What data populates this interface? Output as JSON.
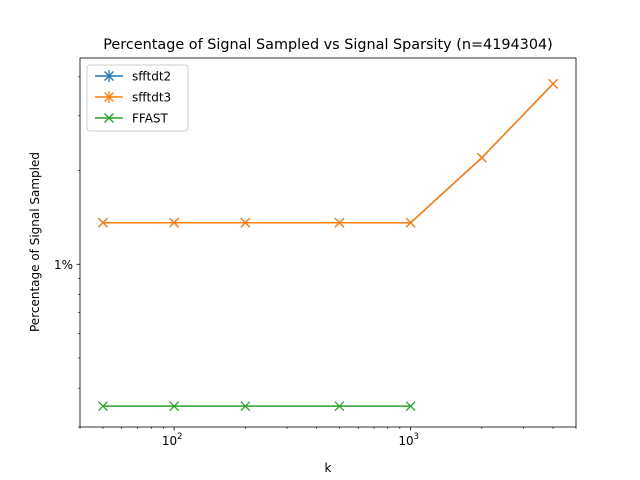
{
  "chart_data": {
    "type": "line",
    "title": "Percentage of Signal Sampled vs Signal Sparsity (n=4194304)",
    "xlabel": "k",
    "ylabel": "Percentage of Signal Sampled",
    "xscale": "log",
    "yscale": "log",
    "xlim": [
      40,
      5000
    ],
    "ylim": [
      0.3,
      4.6
    ],
    "x_major_ticks": [
      {
        "value": 100,
        "base": "10",
        "exp": "2"
      },
      {
        "value": 1000,
        "base": "10",
        "exp": "3"
      }
    ],
    "x_minor_ticks": [
      40,
      50,
      60,
      70,
      80,
      90,
      200,
      300,
      400,
      500,
      600,
      700,
      800,
      900,
      2000,
      3000,
      4000,
      5000
    ],
    "y_major_ticks": [
      {
        "value": 1,
        "label": "1%"
      }
    ],
    "y_minor_ticks": [
      0.3,
      0.4,
      0.5,
      0.6,
      0.7,
      0.8,
      0.9,
      2,
      3,
      4
    ],
    "grid": false,
    "legend_position": "top-left",
    "series": [
      {
        "name": "sfftdt2",
        "color": "#1f77b4",
        "marker": "star",
        "x": [
          50,
          100,
          200,
          500,
          1000,
          2000,
          4000
        ],
        "y": [
          1.36,
          1.36,
          1.36,
          1.36,
          1.36,
          2.2,
          3.8
        ]
      },
      {
        "name": "sfftdt3",
        "color": "#ff7f0e",
        "marker": "star",
        "x": [
          50,
          100,
          200,
          500,
          1000,
          2000,
          4000
        ],
        "y": [
          1.36,
          1.36,
          1.36,
          1.36,
          1.36,
          2.2,
          3.8
        ]
      },
      {
        "name": "FFAST",
        "color": "#2ca02c",
        "marker": "x",
        "x": [
          50,
          100,
          200,
          500,
          1000
        ],
        "y": [
          0.35,
          0.35,
          0.35,
          0.35,
          0.35
        ]
      }
    ]
  }
}
